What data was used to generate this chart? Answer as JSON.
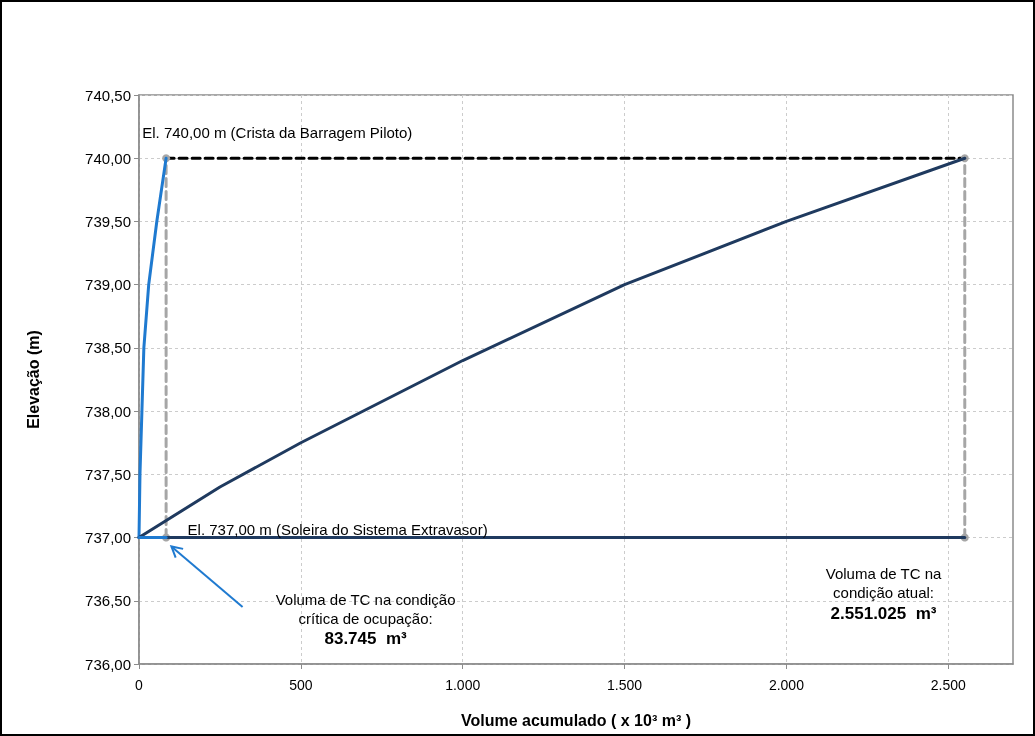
{
  "chart_data": {
    "type": "line",
    "xlabel": "Volume acumulado ( x 10³ m³ )",
    "ylabel": "Elevação (m)",
    "xlim": [
      0,
      2700
    ],
    "xticks": [
      0,
      500,
      {
        "value": 1000,
        "label": "1.000"
      },
      {
        "value": 1500,
        "label": "1.500"
      },
      {
        "value": 2000,
        "label": "2.000"
      },
      {
        "value": 2500,
        "label": "2.500"
      }
    ],
    "ylim": [
      736,
      740.5
    ],
    "yticks": [
      {
        "value": 736,
        "label": "736,00"
      },
      {
        "value": 736.5,
        "label": "736,50"
      },
      {
        "value": 737,
        "label": "737,00"
      },
      {
        "value": 737.5,
        "label": "737,50"
      },
      {
        "value": 738,
        "label": "738,00"
      },
      {
        "value": 738.5,
        "label": "738,50"
      },
      {
        "value": 739,
        "label": "739,00"
      },
      {
        "value": 739.5,
        "label": "739,50"
      },
      {
        "value": 740,
        "label": "740,00"
      },
      {
        "value": 740.5,
        "label": "740,50"
      }
    ],
    "grid": true,
    "marker": "none",
    "series": [
      {
        "color": "#1f7ad0",
        "x": [
          0,
          3,
          9,
          15,
          30,
          55,
          83.745
        ],
        "values": [
          737,
          737.5,
          738,
          738.5,
          739,
          739.5,
          740
        ]
      },
      {
        "color": "#1f3a5f",
        "x": [
          0,
          250,
          500,
          1000,
          1500,
          2000,
          2551.025
        ],
        "values": [
          737,
          737.4,
          737.75,
          738.4,
          739,
          739.5,
          740
        ]
      },
      {
        "color": "#000000",
        "line_style": "dashed",
        "x": [
          83.745,
          2551.025
        ],
        "values": [
          740,
          740
        ]
      },
      {
        "color": "#a6a6a6",
        "line_style": "dashed",
        "marker": "circle",
        "x": [
          83.745,
          83.745
        ],
        "values": [
          737,
          740
        ]
      },
      {
        "color": "#a6a6a6",
        "line_style": "dashed",
        "marker": "circle",
        "x": [
          2551.025,
          2551.025
        ],
        "values": [
          737,
          740
        ]
      },
      {
        "color": "#1f3a5f",
        "x": [
          0,
          2551.025
        ],
        "values": [
          737,
          737
        ]
      },
      {
        "color": "#1f7ad0",
        "x": [
          0,
          83.745
        ],
        "values": [
          737,
          737
        ]
      }
    ],
    "annotations": [
      "El. 740,00 m (Crista da Barragem Piloto)",
      "El. 737,00 m (Soleira do Sistema Extravasor)",
      "Voluma de TC na condição\ncrítica de ocupação:\n83.745  m³",
      "Voluma de TC na\ncondição atual:\n2.551.025  m³"
    ]
  }
}
